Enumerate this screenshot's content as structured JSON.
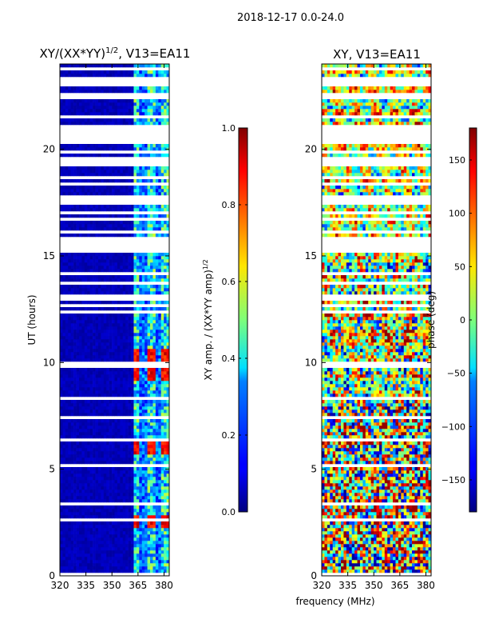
{
  "chart_data": [
    {
      "type": "heatmap",
      "suptitle": "2018-12-17 0.0-24.0",
      "title_base": "XY/(XX*YY)",
      "title_exponent": "1/2",
      "title_suffix": ", V13=EA11",
      "xlabel": "",
      "ylabel": "UT (hours)",
      "xlim": [
        320,
        383
      ],
      "ylim": [
        0,
        24
      ],
      "xticks": [
        "320",
        "335",
        "350",
        "365",
        "380"
      ],
      "yticks": [
        "0",
        "5",
        "10",
        "15",
        "20"
      ],
      "colorbar": {
        "label_base": "XY amp. / (XX*YY amp)",
        "label_exponent": "1/2",
        "range": [
          0.0,
          1.0
        ],
        "ticks": [
          "0.0",
          "0.2",
          "0.4",
          "0.6",
          "0.8",
          "1.0"
        ],
        "colormap": "jet"
      },
      "description_values": {
        "low_band_320_360_MHz": 0.03,
        "high_band_362_383_MHz": 0.4,
        "peak_patches_hours": [
          2.5,
          6.0,
          9.5,
          10.3
        ],
        "peak_value": 0.95
      }
    },
    {
      "type": "heatmap",
      "title": "XY, V13=EA11",
      "xlabel": "frequency (MHz)",
      "ylabel": "",
      "xlim": [
        320,
        383
      ],
      "ylim": [
        0,
        24
      ],
      "xticks": [
        "320",
        "335",
        "350",
        "365",
        "380"
      ],
      "yticks": [
        "0",
        "5",
        "10",
        "15",
        "20"
      ],
      "colorbar": {
        "label": "phase (deg)",
        "range": [
          -180,
          180
        ],
        "ticks": [
          "−150",
          "−100",
          "−50",
          "0",
          "50",
          "100",
          "150"
        ],
        "colormap": "jet"
      }
    }
  ],
  "colors": {
    "frame": "#000000",
    "gap": "#ffffff",
    "background": "#ffffff"
  }
}
